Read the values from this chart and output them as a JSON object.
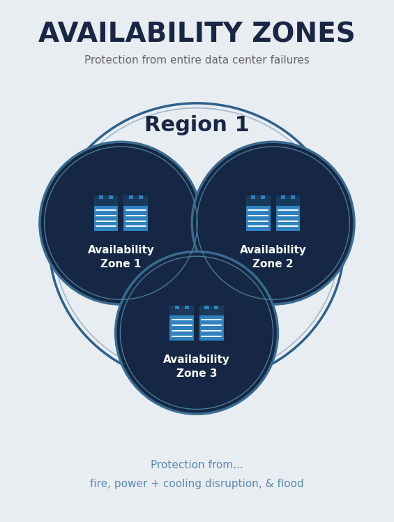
{
  "title": "AVAILABILITY ZONES",
  "subtitle": "Protection from entire data center failures",
  "region_label": "Region 1",
  "zone_labels": [
    "Availability\nZone 1",
    "Availability\nZone 2",
    "Availability\nZone 3"
  ],
  "footer_line1": "Protection from...",
  "footer_line2": "fire, power + cooling disruption, & flood",
  "bg_color": "#e8edf2",
  "title_color": "#1a2744",
  "subtitle_color": "#666666",
  "region_circle_fill": "#e8edf2",
  "region_circle_edge": "#2d5f8a",
  "region_circle_edge2": "#a0b8cc",
  "zone_circle_fill": "#152744",
  "zone_circle_edge": "#3a6b90",
  "zone_label_color": "#ffffff",
  "server_blue": "#2e82be",
  "server_dark": "#1a3a5c",
  "footer_color": "#5a8ab0"
}
